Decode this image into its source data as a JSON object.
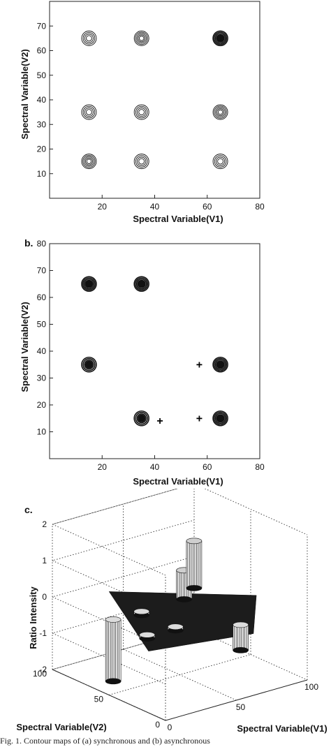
{
  "panels": {
    "a": {
      "label": ""
    },
    "b": {
      "label": "b."
    },
    "c": {
      "label": "c."
    }
  },
  "caption": "Fig. 1.   Contour maps of (a) synchronous and (b) asynchronous",
  "chart_data": [
    {
      "type": "contour",
      "panel": "a",
      "xlabel": "Spectral Variable(V1)",
      "ylabel": "Spectral Variable(V2)",
      "xlim": [
        0,
        80
      ],
      "ylim": [
        0,
        80
      ],
      "xticks": [
        20,
        40,
        60,
        80
      ],
      "yticks": [
        10,
        20,
        30,
        40,
        50,
        60,
        70
      ],
      "peaks": [
        {
          "x": 15,
          "y": 65,
          "rings": 4,
          "filled": false
        },
        {
          "x": 35,
          "y": 65,
          "rings": 5,
          "filled": false
        },
        {
          "x": 65,
          "y": 65,
          "rings": 6,
          "filled": true
        },
        {
          "x": 15,
          "y": 35,
          "rings": 4,
          "filled": false
        },
        {
          "x": 35,
          "y": 35,
          "rings": 4,
          "filled": false
        },
        {
          "x": 65,
          "y": 35,
          "rings": 5,
          "filled": false
        },
        {
          "x": 15,
          "y": 15,
          "rings": 5,
          "filled": false
        },
        {
          "x": 35,
          "y": 15,
          "rings": 4,
          "filled": false
        },
        {
          "x": 65,
          "y": 15,
          "rings": 4,
          "filled": false
        }
      ]
    },
    {
      "type": "contour",
      "panel": "b",
      "xlabel": "Spectral Variable(V1)",
      "ylabel": "Spectral Variable(V2)",
      "xlim": [
        0,
        80
      ],
      "ylim": [
        0,
        80
      ],
      "xticks": [
        20,
        40,
        60,
        80
      ],
      "yticks": [
        10,
        20,
        30,
        40,
        50,
        60,
        70,
        80
      ],
      "peaks": [
        {
          "x": 15,
          "y": 65,
          "rings": 6,
          "filled": true
        },
        {
          "x": 35,
          "y": 65,
          "rings": 6,
          "filled": true
        },
        {
          "x": 15,
          "y": 35,
          "rings": 5,
          "filled": true
        },
        {
          "x": 65,
          "y": 35,
          "rings": 6,
          "filled": true
        },
        {
          "x": 35,
          "y": 15,
          "rings": 5,
          "filled": true
        },
        {
          "x": 65,
          "y": 15,
          "rings": 6,
          "filled": true
        }
      ],
      "plus_markers": [
        {
          "x": 57,
          "y": 35
        },
        {
          "x": 42,
          "y": 14
        },
        {
          "x": 57,
          "y": 15
        }
      ]
    },
    {
      "type": "surface3d",
      "panel": "c",
      "xlabel": "Spectral Variable(V1)",
      "ylabel": "Spectral Variable(V2)",
      "zlabel": "Ratio Intensity",
      "xlim": [
        0,
        100
      ],
      "ylim": [
        0,
        100
      ],
      "zlim": [
        -2,
        2
      ],
      "xticks": [
        0,
        50,
        100
      ],
      "yticks": [
        0,
        50,
        100
      ],
      "zticks": [
        -2,
        -1,
        0,
        1,
        2
      ],
      "base_level": -0.3,
      "features": [
        {
          "x": 15,
          "y": 65,
          "z": -2.0
        },
        {
          "x": 35,
          "y": 65,
          "z": -0.4
        },
        {
          "x": 15,
          "y": 35,
          "z": -0.4
        },
        {
          "x": 35,
          "y": 35,
          "z": -0.4
        },
        {
          "x": 65,
          "y": 15,
          "z": -1.0
        },
        {
          "x": 65,
          "y": 65,
          "z": 0.5
        },
        {
          "x": 80,
          "y": 75,
          "z": 1.0
        }
      ]
    }
  ]
}
